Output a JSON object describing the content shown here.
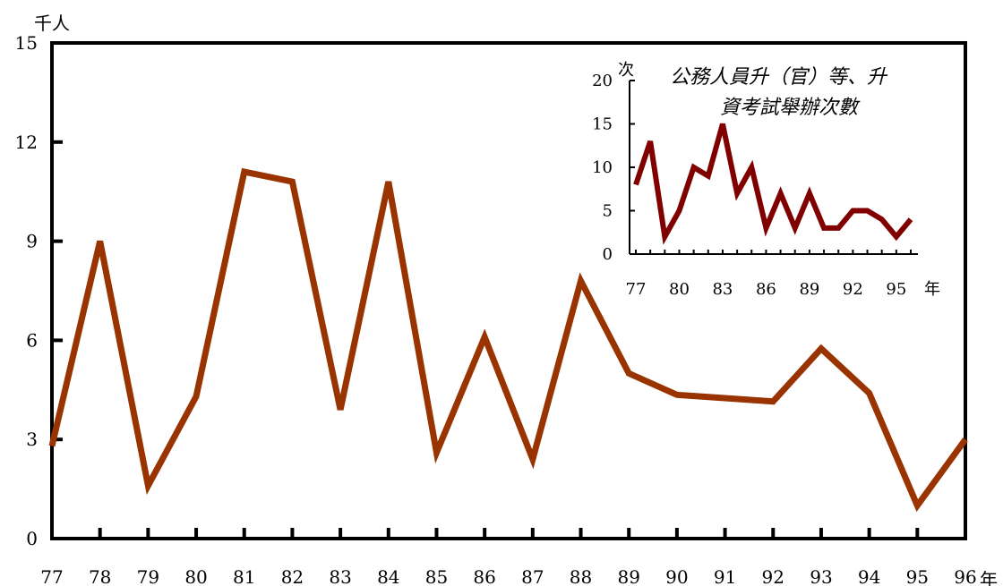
{
  "chart_data": [
    {
      "type": "line",
      "y_unit": "千人",
      "x_unit": "年",
      "x": [
        "77",
        "78",
        "79",
        "80",
        "81",
        "82",
        "83",
        "84",
        "85",
        "86",
        "87",
        "88",
        "89",
        "90",
        "91",
        "92",
        "93",
        "94",
        "95",
        "96"
      ],
      "series": [
        {
          "values": [
            2.8,
            9.0,
            1.6,
            4.3,
            11.1,
            10.8,
            3.9,
            10.8,
            2.6,
            6.1,
            2.4,
            7.8,
            5.0,
            4.35,
            4.25,
            4.15,
            5.75,
            4.4,
            1.0,
            3.0
          ]
        }
      ],
      "yticks": [
        "0",
        "3",
        "6",
        "9",
        "12",
        "15"
      ],
      "ylim": [
        0,
        15
      ],
      "color": "#993300",
      "grid": false
    },
    {
      "type": "line",
      "title_lines": [
        "公務人員升（官）等、升",
        "資考試舉辦次數"
      ],
      "y_unit": "次",
      "x_unit": "年",
      "xticks": [
        "77",
        "80",
        "83",
        "86",
        "89",
        "92",
        "95"
      ],
      "x": [
        77,
        78,
        79,
        80,
        81,
        82,
        83,
        84,
        85,
        86,
        87,
        88,
        89,
        90,
        91,
        92,
        93,
        94,
        95,
        96
      ],
      "series": [
        {
          "values": [
            8,
            13,
            2,
            5,
            10,
            9,
            15,
            7,
            10,
            3,
            7,
            3,
            7,
            3,
            3,
            5,
            5,
            4,
            2,
            4
          ]
        }
      ],
      "yticks": [
        "0",
        "5",
        "10",
        "15",
        "20"
      ],
      "ylim": [
        0,
        20
      ],
      "color": "#800000",
      "grid": false
    }
  ]
}
